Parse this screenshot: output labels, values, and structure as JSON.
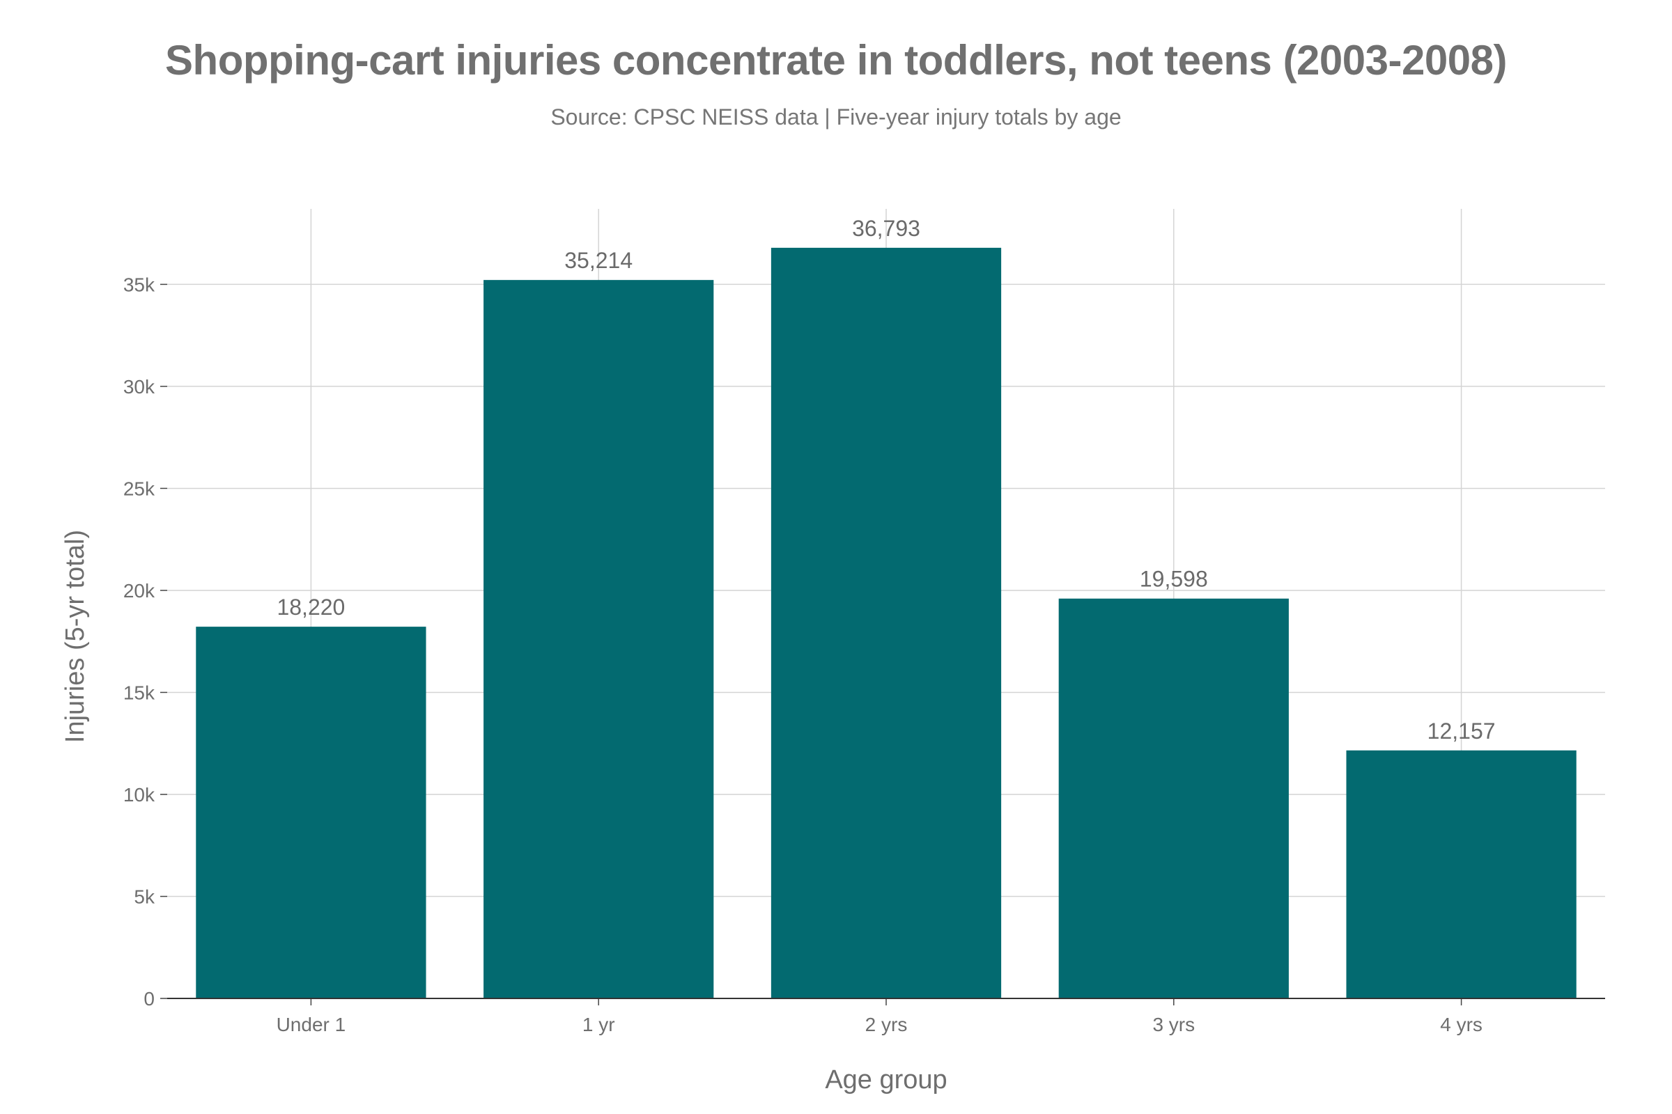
{
  "chart_data": {
    "type": "bar",
    "title": "Shopping-cart injuries concentrate in toddlers, not teens (2003-2008)",
    "subtitle": "Source: CPSC NEISS data | Five-year injury totals by age",
    "xlabel": "Age group",
    "ylabel": "Injuries (5-yr total)",
    "categories": [
      "Under 1",
      "1 yr",
      "2 yrs",
      "3 yrs",
      "4 yrs"
    ],
    "values": [
      18220,
      35214,
      36793,
      19598,
      12157
    ],
    "value_labels": [
      "18,220",
      "35,214",
      "36,793",
      "19,598",
      "12,157"
    ],
    "ylim": [
      0,
      38700
    ],
    "yticks": [
      0,
      5000,
      10000,
      15000,
      20000,
      25000,
      30000,
      35000
    ],
    "ytick_labels": [
      "0",
      "5k",
      "10k",
      "15k",
      "20k",
      "25k",
      "30k",
      "35k"
    ],
    "bar_color": "#036a70",
    "grid": true,
    "legend": false
  }
}
